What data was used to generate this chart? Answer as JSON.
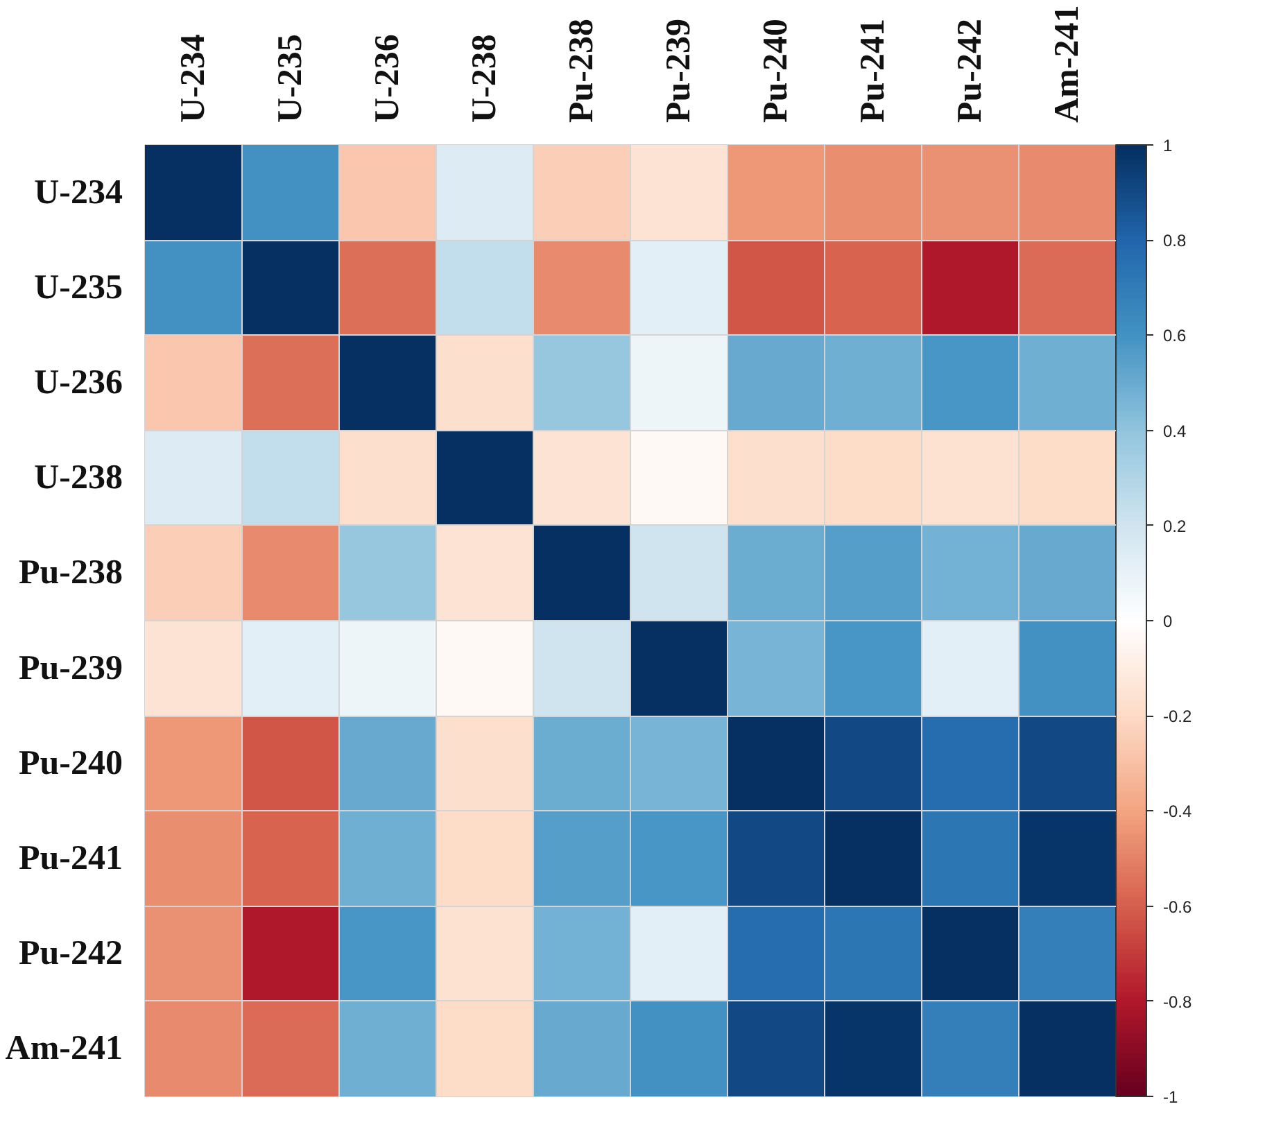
{
  "chart_data": {
    "type": "heatmap",
    "grid": true,
    "categories": [
      "U-234",
      "U-235",
      "U-236",
      "U-238",
      "Pu-238",
      "Pu-239",
      "Pu-240",
      "Pu-241",
      "Pu-242",
      "Am-241"
    ],
    "y_categories": [
      "U-234",
      "U-235",
      "U-236",
      "U-238",
      "Pu-238",
      "Pu-239",
      "Pu-240",
      "Pu-241",
      "Pu-242",
      "Am-241"
    ],
    "cells": [
      [
        1,
        0.6,
        -0.28,
        0.14,
        -0.25,
        -0.16,
        -0.44,
        -0.47,
        -0.46,
        -0.48
      ],
      [
        0.6,
        1,
        -0.55,
        0.24,
        -0.48,
        0.12,
        -0.63,
        -0.59,
        -0.8,
        -0.56
      ],
      [
        -0.28,
        -0.55,
        1,
        -0.18,
        0.38,
        0.07,
        0.5,
        0.48,
        0.58,
        0.48
      ],
      [
        0.14,
        0.24,
        -0.18,
        1,
        -0.16,
        -0.04,
        -0.18,
        -0.2,
        -0.17,
        -0.2
      ],
      [
        -0.25,
        -0.48,
        0.38,
        -0.16,
        1,
        0.2,
        0.49,
        0.55,
        0.47,
        0.5
      ],
      [
        -0.16,
        0.12,
        0.07,
        -0.04,
        0.2,
        1,
        0.46,
        0.58,
        0.13,
        0.6
      ],
      [
        -0.44,
        -0.63,
        0.5,
        -0.18,
        0.49,
        0.46,
        1,
        0.9,
        0.76,
        0.9
      ],
      [
        -0.47,
        -0.59,
        0.48,
        -0.2,
        0.55,
        0.58,
        0.9,
        1,
        0.72,
        0.97
      ],
      [
        -0.46,
        -0.8,
        0.58,
        -0.17,
        0.47,
        0.13,
        0.76,
        0.72,
        1,
        0.68
      ],
      [
        -0.48,
        -0.56,
        0.48,
        -0.2,
        0.5,
        0.6,
        0.9,
        0.97,
        0.68,
        1
      ]
    ],
    "clim": [
      -1,
      1
    ],
    "cticks": [
      -1,
      -0.8,
      -0.6,
      -0.4,
      -0.2,
      0,
      0.2,
      0.4,
      0.6,
      0.8,
      1
    ]
  }
}
